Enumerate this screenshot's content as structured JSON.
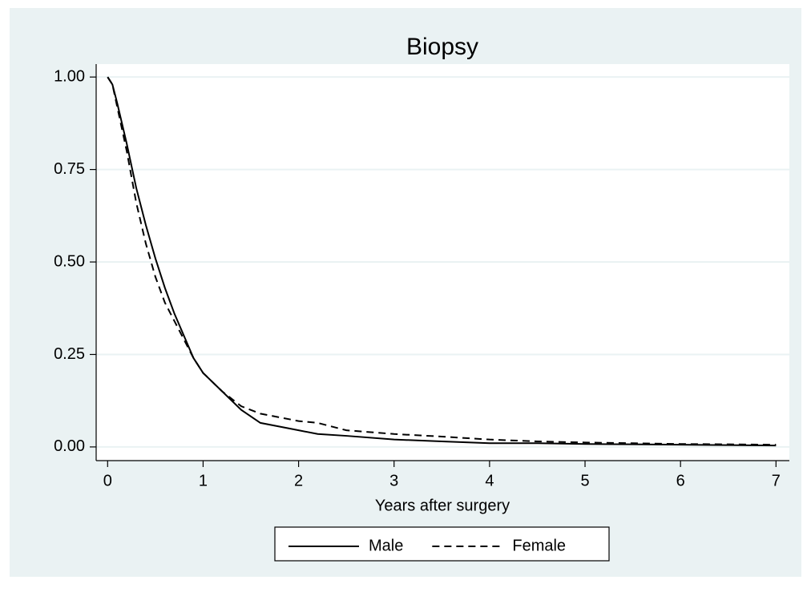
{
  "chart_data": {
    "type": "line",
    "title": "Biopsy",
    "xlabel": "Years after surgery",
    "x": [
      0,
      0.05,
      0.1,
      0.2,
      0.3,
      0.4,
      0.5,
      0.6,
      0.7,
      0.8,
      0.9,
      1.0,
      1.2,
      1.4,
      1.6,
      1.8,
      2.0,
      2.2,
      2.5,
      3,
      3.5,
      4,
      4.5,
      5,
      5.5,
      6,
      6.5,
      7
    ],
    "series": [
      {
        "name": "Male",
        "color": "#000000",
        "linestyle": "solid",
        "values": [
          1.0,
          0.98,
          0.93,
          0.82,
          0.7,
          0.6,
          0.51,
          0.43,
          0.36,
          0.3,
          0.24,
          0.2,
          0.15,
          0.1,
          0.065,
          0.055,
          0.045,
          0.035,
          0.03,
          0.02,
          0.015,
          0.01,
          0.01,
          0.008,
          0.007,
          0.006,
          0.005,
          0.004
        ]
      },
      {
        "name": "Female",
        "color": "#000000",
        "linestyle": "dashed",
        "values": [
          1.0,
          0.98,
          0.92,
          0.8,
          0.66,
          0.55,
          0.46,
          0.39,
          0.34,
          0.29,
          0.24,
          0.2,
          0.15,
          0.11,
          0.09,
          0.08,
          0.07,
          0.065,
          0.045,
          0.035,
          0.028,
          0.02,
          0.015,
          0.012,
          0.01,
          0.008,
          0.007,
          0.006
        ]
      }
    ],
    "xlim": [
      -0.12,
      7.14
    ],
    "xticks": [
      0,
      1,
      2,
      3,
      4,
      5,
      6,
      7
    ],
    "ylim": [
      -0.037,
      1.035
    ],
    "yticks": [
      {
        "value": 0,
        "label": "0.00"
      },
      {
        "value": 0.25,
        "label": "0.25"
      },
      {
        "value": 0.5,
        "label": "0.50"
      },
      {
        "value": 0.75,
        "label": "0.75"
      },
      {
        "value": 1,
        "label": "1.00"
      }
    ],
    "grid": true,
    "legend": "bottom"
  }
}
